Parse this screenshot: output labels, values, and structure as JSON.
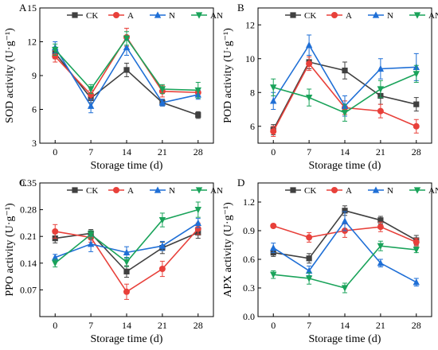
{
  "colors": {
    "CK": "#404040",
    "A": "#e8403a",
    "N": "#1f6fd6",
    "AN": "#1aa35a"
  },
  "chart_data": [
    {
      "panel": "A",
      "type": "line",
      "x": [
        0,
        7,
        14,
        21,
        28
      ],
      "xlabel": "Storage time (d)",
      "ylabel": "SOD activity (U·g⁻¹)",
      "ylim": [
        3,
        15
      ],
      "yticks": [
        "3",
        "6",
        "9",
        "12",
        "15"
      ],
      "ytick_values": [
        3,
        6,
        9,
        12,
        15
      ],
      "legend": [
        "CK",
        "A",
        "N",
        "AN"
      ],
      "series": [
        {
          "name": "CK",
          "values": [
            11.0,
            7.0,
            9.5,
            6.6,
            5.5
          ],
          "err": [
            0.5,
            0.4,
            0.6,
            0.3,
            0.3
          ]
        },
        {
          "name": "A",
          "values": [
            10.7,
            7.3,
            12.4,
            7.6,
            7.5
          ],
          "err": [
            0.5,
            0.4,
            0.8,
            0.5,
            0.4
          ]
        },
        {
          "name": "N",
          "values": [
            11.5,
            6.3,
            11.5,
            6.6,
            7.3
          ],
          "err": [
            0.5,
            0.6,
            0.7,
            0.3,
            0.4
          ]
        },
        {
          "name": "AN",
          "values": [
            11.3,
            7.8,
            12.3,
            7.8,
            7.7
          ],
          "err": [
            0.5,
            0.4,
            0.6,
            0.4,
            0.7
          ]
        }
      ]
    },
    {
      "panel": "B",
      "type": "line",
      "x": [
        0,
        7,
        14,
        21,
        28
      ],
      "xlabel": "Storage time (d)",
      "ylabel": "POD activity (U·g⁻¹)",
      "ylim": [
        5,
        13
      ],
      "yticks": [
        "6",
        "8",
        "10",
        "12"
      ],
      "ytick_values": [
        6,
        8,
        10,
        12
      ],
      "legend": [
        "CK",
        "A",
        "N",
        "AN"
      ],
      "series": [
        {
          "name": "CK",
          "values": [
            5.8,
            9.8,
            9.3,
            7.8,
            7.3
          ],
          "err": [
            0.3,
            0.4,
            0.5,
            0.5,
            0.4
          ]
        },
        {
          "name": "A",
          "values": [
            5.7,
            9.7,
            7.1,
            6.9,
            6.0
          ],
          "err": [
            0.3,
            0.4,
            0.4,
            0.4,
            0.4
          ]
        },
        {
          "name": "N",
          "values": [
            7.5,
            10.8,
            7.2,
            9.4,
            9.5
          ],
          "err": [
            0.5,
            0.6,
            0.6,
            0.6,
            0.8
          ]
        },
        {
          "name": "AN",
          "values": [
            8.3,
            7.7,
            6.8,
            8.2,
            9.1
          ],
          "err": [
            0.5,
            0.5,
            0.5,
            0.5,
            0.5
          ]
        }
      ]
    },
    {
      "panel": "C",
      "type": "line",
      "x": [
        0,
        7,
        14,
        21,
        28
      ],
      "xlabel": "Storage time (d)",
      "ylabel": "PPO activity (U·g⁻¹)",
      "ylim": [
        0.0,
        0.35
      ],
      "yticks": [
        "0.07",
        "0.14",
        "0.21",
        "0.28",
        "0.35"
      ],
      "ytick_values": [
        0.07,
        0.14,
        0.21,
        0.28,
        0.35
      ],
      "legend": [
        "CK",
        "A",
        "N",
        "AN"
      ],
      "series": [
        {
          "name": "CK",
          "values": [
            0.205,
            0.218,
            0.118,
            0.18,
            0.22
          ],
          "err": [
            0.012,
            0.01,
            0.015,
            0.015,
            0.015
          ]
        },
        {
          "name": "A",
          "values": [
            0.223,
            0.207,
            0.065,
            0.125,
            0.23
          ],
          "err": [
            0.018,
            0.012,
            0.02,
            0.02,
            0.015
          ]
        },
        {
          "name": "N",
          "values": [
            0.155,
            0.19,
            0.168,
            0.185,
            0.245
          ],
          "err": [
            0.008,
            0.02,
            0.015,
            0.012,
            0.012
          ]
        },
        {
          "name": "AN",
          "values": [
            0.14,
            0.215,
            0.143,
            0.253,
            0.28
          ],
          "err": [
            0.01,
            0.01,
            0.012,
            0.018,
            0.02
          ]
        }
      ]
    },
    {
      "panel": "D",
      "type": "line",
      "x": [
        0,
        7,
        14,
        21,
        28
      ],
      "xlabel": "Storage time (d)",
      "ylabel": "APX activity (U·g⁻¹)",
      "ylim": [
        0.0,
        1.4
      ],
      "yticks": [
        "0.0",
        "0.3",
        "0.6",
        "0.9",
        "1.2"
      ],
      "ytick_values": [
        0.0,
        0.3,
        0.6,
        0.9,
        1.2
      ],
      "legend": [
        "CK",
        "A",
        "N",
        "AN"
      ],
      "series": [
        {
          "name": "CK",
          "values": [
            0.67,
            0.61,
            1.11,
            1.01,
            0.8
          ],
          "err": [
            0.04,
            0.05,
            0.05,
            0.04,
            0.05
          ]
        },
        {
          "name": "A",
          "values": [
            0.95,
            0.83,
            0.9,
            0.94,
            0.78
          ],
          "err": [
            0.02,
            0.05,
            0.07,
            0.05,
            0.04
          ]
        },
        {
          "name": "N",
          "values": [
            0.72,
            0.48,
            1.0,
            0.56,
            0.36
          ],
          "err": [
            0.05,
            0.05,
            0.1,
            0.04,
            0.04
          ]
        },
        {
          "name": "AN",
          "values": [
            0.44,
            0.4,
            0.3,
            0.74,
            0.7
          ],
          "err": [
            0.04,
            0.06,
            0.05,
            0.05,
            0.03
          ]
        }
      ]
    }
  ],
  "xticks": [
    "0",
    "7",
    "14",
    "21",
    "28"
  ]
}
